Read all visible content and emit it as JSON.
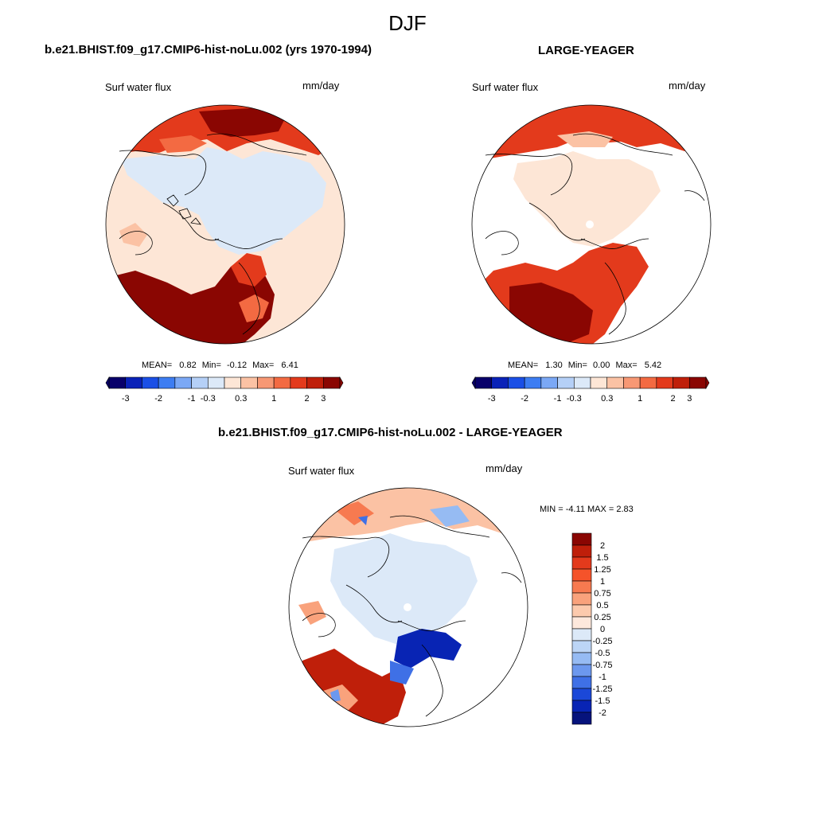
{
  "figure": {
    "title": "DJF",
    "colors": {
      "land_outline": "#000000",
      "circle_edge": "#000000",
      "missing": "#ffffff"
    }
  },
  "panels": [
    {
      "title": "b.e21.BHIST.f09_g17.CMIP6-hist-noLu.002 (yrs 1970-1994)",
      "variable": "Surf water flux",
      "units": "mm/day",
      "stats": {
        "mean_label": "MEAN=",
        "mean": "0.82",
        "min_label": "Min=",
        "min": "-0.12",
        "max_label": "Max=",
        "max": "6.41"
      },
      "colorbar_labels": [
        "-3",
        "-2",
        "-1",
        "-0.3",
        "0.3",
        "1",
        "2",
        "3"
      ]
    },
    {
      "title": "LARGE-YEAGER",
      "variable": "Surf water flux",
      "units": "mm/day",
      "stats": {
        "mean_label": "MEAN=",
        "mean": "1.30",
        "min_label": "Min=",
        "min": "0.00",
        "max_label": "Max=",
        "max": "5.42"
      },
      "colorbar_labels": [
        "-3",
        "-2",
        "-1",
        "-0.3",
        "0.3",
        "1",
        "2",
        "3"
      ]
    },
    {
      "title": "b.e21.BHIST.f09_g17.CMIP6-hist-noLu.002 - LARGE-YEAGER",
      "variable": "Surf water flux",
      "units": "mm/day",
      "minmax": "MIN =  -4.11 MAX =   2.83",
      "colorbar_labels": [
        "2",
        "1.5",
        "1.25",
        "1",
        "0.75",
        "0.5",
        "0.25",
        "0",
        "-0.25",
        "-0.5",
        "-0.75",
        "-1",
        "-1.25",
        "-1.5",
        "-2"
      ]
    }
  ],
  "colorbar_colors": [
    "#08006a",
    "#0a22b8",
    "#1a4fe6",
    "#3d7df2",
    "#7ba8f5",
    "#b5d0f7",
    "#dce9f8",
    "#fde6d6",
    "#fbc2a4",
    "#f79874",
    "#f36a42",
    "#e33a1c",
    "#bf1f0a",
    "#8a0602"
  ],
  "diff_colorbar_colors": [
    "#8a0602",
    "#bf1f0a",
    "#e33a1c",
    "#f5532a",
    "#f77a50",
    "#f9a27c",
    "#fccaad",
    "#fde8dc",
    "#dce9f8",
    "#bcd5f6",
    "#96bbf3",
    "#6c98ee",
    "#3f70e6",
    "#1b48d8",
    "#0824b4",
    "#06137c"
  ]
}
